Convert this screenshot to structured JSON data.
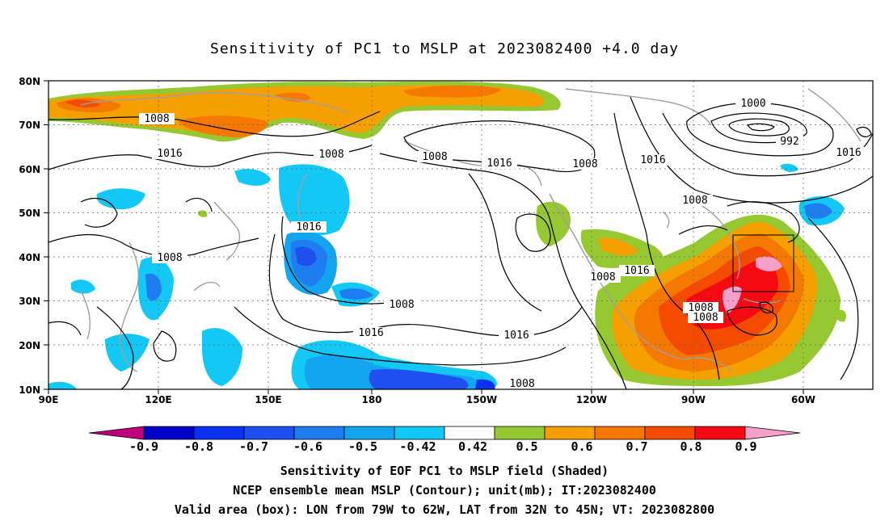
{
  "title": "Sensitivity of PC1 to MSLP at 2023082400 +4.0 day",
  "lat_labels": [
    "80N",
    "70N",
    "60N",
    "50N",
    "40N",
    "30N",
    "20N",
    "10N"
  ],
  "lon_labels": [
    "90E",
    "120E",
    "150E",
    "180",
    "150W",
    "120W",
    "90W",
    "60W"
  ],
  "isobar_labels": [
    "1008",
    "1016",
    "1008",
    "1008",
    "1008",
    "1016",
    "1008",
    "1016",
    "1000",
    "992",
    "1016",
    "1008",
    "1016",
    "1008",
    "1016",
    "1008",
    "1016",
    "1016",
    "1008",
    "1008",
    "1008"
  ],
  "colorbar": {
    "tick_labels": [
      "-0.9",
      "-0.8",
      "-0.7",
      "-0.6",
      "-0.5",
      "-0.42",
      "0.42",
      "0.5",
      "0.6",
      "0.7",
      "0.8",
      "0.9"
    ],
    "colors": [
      "#c0007a",
      "#0000c8",
      "#0a2ff5",
      "#1e4ff0",
      "#1e7df0",
      "#14a5f0",
      "#14c8f5",
      "#ffffff",
      "#96c832",
      "#f5a000",
      "#f57800",
      "#f54b00",
      "#f50a14",
      "#f5a0c8"
    ]
  },
  "valid_box": {
    "lon_from": "79W",
    "lon_to": "62W",
    "lat_from": "32N",
    "lat_to": "45N"
  },
  "captions": {
    "line1": "Sensitivity of EOF PC1 to MSLP field (Shaded)",
    "line2": "NCEP ensemble mean MSLP (Contour); unit(mb); IT:2023082400",
    "line3": "Valid area (box): LON from 79W to 62W, LAT from 32N to 45N; VT: 2023082800"
  }
}
